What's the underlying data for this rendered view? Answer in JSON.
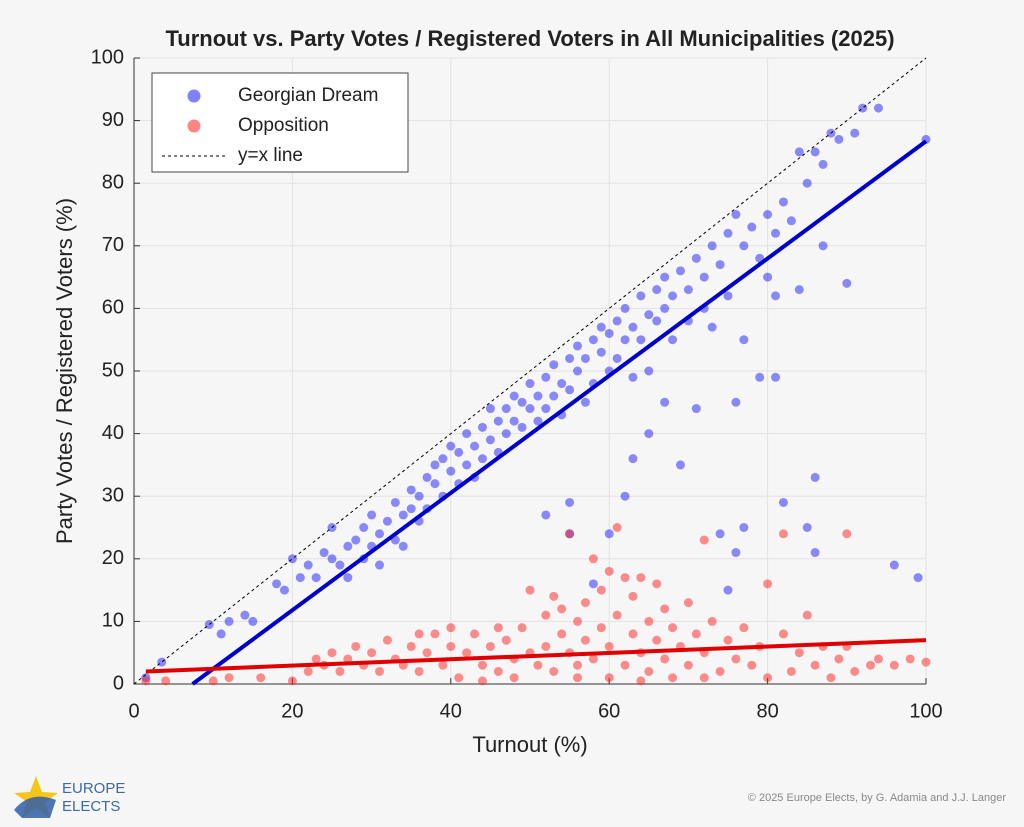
{
  "chart_data": {
    "type": "scatter",
    "title": "Turnout vs. Party Votes / Registered Voters in All Municipalities (2025)",
    "x_label": "Turnout (%)",
    "y_label": "Party Votes / Registered Voters (%)",
    "xlim": [
      0,
      100
    ],
    "ylim": [
      0,
      100
    ],
    "xticks": [
      0,
      20,
      40,
      60,
      80,
      100
    ],
    "yticks": [
      0,
      10,
      20,
      30,
      40,
      50,
      60,
      70,
      80,
      90,
      100
    ],
    "grid": true,
    "legend_position": "upper-left",
    "series": [
      {
        "name": "Georgian Dream",
        "color": "#1a1aff",
        "x": [
          1.5,
          3.5,
          9.5,
          11,
          12,
          14,
          15,
          18,
          19,
          20,
          21,
          22,
          23,
          24,
          25,
          25,
          26,
          27,
          27,
          28,
          29,
          29,
          30,
          30,
          31,
          31,
          32,
          33,
          33,
          34,
          34,
          35,
          35,
          36,
          36,
          37,
          37,
          38,
          38,
          39,
          39,
          40,
          40,
          41,
          41,
          42,
          42,
          43,
          43,
          44,
          44,
          45,
          45,
          46,
          46,
          47,
          47,
          48,
          48,
          49,
          49,
          50,
          50,
          51,
          51,
          52,
          52,
          53,
          53,
          54,
          54,
          55,
          55,
          56,
          56,
          57,
          57,
          58,
          58,
          59,
          59,
          60,
          60,
          61,
          61,
          62,
          62,
          63,
          63,
          64,
          64,
          65,
          65,
          66,
          66,
          67,
          67,
          68,
          68,
          69,
          70,
          70,
          71,
          72,
          72,
          73,
          74,
          75,
          75,
          76,
          77,
          78,
          79,
          80,
          81,
          82,
          83,
          84,
          85,
          86,
          87,
          88,
          89,
          91,
          92,
          94,
          100,
          81,
          84,
          87,
          90,
          79,
          81,
          82,
          86,
          85,
          86,
          96,
          99,
          77,
          74,
          76,
          75,
          71,
          69,
          65,
          62,
          58,
          55,
          52,
          55,
          60,
          63,
          67,
          73,
          77,
          76,
          80
        ],
        "values": [
          1,
          3.5,
          9.5,
          8,
          10,
          11,
          10,
          16,
          15,
          20,
          17,
          19,
          17,
          21,
          20,
          25,
          19,
          22,
          17,
          23,
          20,
          25,
          22,
          27,
          24,
          19,
          26,
          23,
          29,
          27,
          22,
          28,
          31,
          26,
          30,
          33,
          28,
          32,
          35,
          30,
          36,
          34,
          38,
          32,
          37,
          35,
          40,
          38,
          33,
          41,
          36,
          39,
          44,
          42,
          37,
          44,
          40,
          46,
          42,
          45,
          41,
          48,
          44,
          46,
          42,
          49,
          44,
          51,
          46,
          48,
          43,
          52,
          47,
          50,
          54,
          52,
          45,
          55,
          48,
          53,
          57,
          56,
          50,
          58,
          52,
          55,
          60,
          57,
          49,
          62,
          55,
          59,
          50,
          63,
          58,
          60,
          65,
          62,
          55,
          66,
          63,
          58,
          68,
          65,
          60,
          70,
          67,
          72,
          62,
          75,
          70,
          73,
          68,
          75,
          72,
          77,
          74,
          85,
          80,
          85,
          83,
          88,
          87,
          88,
          92,
          92,
          87,
          62,
          63,
          70,
          64,
          49,
          49,
          29,
          33,
          25,
          21,
          19,
          17,
          25,
          24,
          21,
          15,
          44,
          35,
          40,
          30,
          16,
          24,
          27,
          29,
          24,
          36,
          45,
          57,
          55,
          45,
          65
        ]
      },
      {
        "name": "Opposition",
        "color": "#ff2020",
        "x": [
          1.5,
          4,
          10,
          12,
          16,
          20,
          22,
          23,
          24,
          25,
          26,
          27,
          28,
          29,
          30,
          31,
          32,
          33,
          34,
          35,
          36,
          37,
          38,
          39,
          40,
          41,
          42,
          43,
          44,
          45,
          46,
          47,
          48,
          49,
          50,
          50,
          51,
          52,
          52,
          53,
          53,
          54,
          54,
          55,
          55,
          56,
          56,
          57,
          57,
          58,
          58,
          59,
          59,
          60,
          60,
          61,
          61,
          62,
          62,
          63,
          63,
          64,
          64,
          65,
          65,
          66,
          66,
          67,
          67,
          68,
          68,
          69,
          70,
          70,
          71,
          72,
          72,
          73,
          74,
          75,
          76,
          77,
          78,
          79,
          80,
          80,
          82,
          82,
          83,
          84,
          85,
          86,
          87,
          88,
          89,
          90,
          90,
          91,
          93,
          94,
          96,
          98,
          100,
          44,
          48,
          56,
          64,
          72,
          36,
          40,
          46,
          60
        ],
        "values": [
          0.5,
          0.5,
          0.5,
          1,
          1,
          0.5,
          2,
          4,
          3,
          5,
          2,
          4,
          6,
          3,
          5,
          2,
          7,
          4,
          3,
          6,
          2,
          5,
          8,
          3,
          6,
          1,
          5,
          8,
          3,
          6,
          2,
          7,
          4,
          9,
          5,
          15,
          3,
          11,
          6,
          14,
          2,
          8,
          12,
          5,
          24,
          10,
          3,
          13,
          7,
          20,
          4,
          9,
          15,
          6,
          18,
          25,
          11,
          3,
          17,
          8,
          14,
          5,
          17,
          10,
          2,
          16,
          7,
          12,
          4,
          9,
          1,
          6,
          13,
          3,
          8,
          23,
          5,
          10,
          2,
          7,
          4,
          9,
          3,
          6,
          16,
          1,
          24,
          8,
          2,
          5,
          11,
          3,
          6,
          1,
          4,
          24,
          6,
          2,
          3,
          4,
          3,
          4,
          3.5,
          0.5,
          1,
          1,
          0.5,
          1,
          8,
          9,
          9,
          1
        ]
      }
    ],
    "fit_lines": [
      {
        "color": "#0000cc",
        "x": [
          7.4,
          100
        ],
        "values": [
          0,
          86.7
        ]
      },
      {
        "color": "#e00000",
        "x": [
          1.5,
          100
        ],
        "values": [
          2,
          7
        ]
      }
    ],
    "reference_line": {
      "name": "y=x line",
      "color": "#000000",
      "x": [
        0,
        100
      ],
      "values": [
        0,
        100
      ]
    }
  },
  "footer": {
    "logo_top": "EUROPE",
    "logo_bottom": "ELECTS",
    "credit": "© 2025 Europe Elects, by G. Adamia and J.J. Langer"
  }
}
